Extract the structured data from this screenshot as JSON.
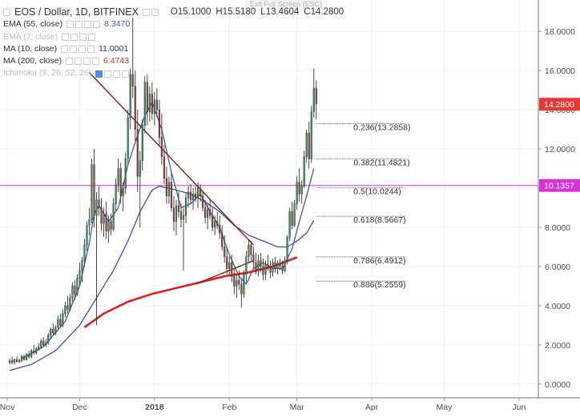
{
  "header": {
    "title": "EOS / Dollar, 1D, BITFINEX",
    "ohlc": {
      "open": "O15.1000",
      "high": "H15.5180",
      "low": "L13.4604",
      "close": "C14.2800"
    },
    "exit_fullscreen": "Exit Full Screen (ESC)"
  },
  "indicators": [
    {
      "label": "EMA (55, close)",
      "value": "8.3470",
      "color": "#3a5bb0",
      "faded": false
    },
    {
      "label": "EMA (7, close)",
      "value": "",
      "color": "#b9bcc2",
      "faded": true
    },
    {
      "label": "MA (10, close)",
      "value": "11.0001",
      "color": "#1f3c88",
      "faded": false
    },
    {
      "label": "MA (200, close)",
      "value": "6.4743",
      "color": "#d32f2f",
      "faded": false
    },
    {
      "label": "Ichimoku (9, 26, 52, 26)",
      "value": "",
      "color": "#b9bcc2",
      "faded": true
    }
  ],
  "chart_data": {
    "type": "candlestick",
    "symbol": "EOS / Dollar",
    "timeframe": "1D",
    "exchange": "BITFINEX",
    "x_ticks": [
      "Nov",
      "Dec",
      "2018",
      "Feb",
      "Mar",
      "Apr",
      "May",
      "Jun"
    ],
    "y_ticks": [
      "0.0000",
      "2.0000",
      "4.0000",
      "6.0000",
      "8.0000",
      "10.0000",
      "12.0000",
      "14.0000",
      "16.0000",
      "18.0000"
    ],
    "ylim": [
      -0.7,
      19.6
    ],
    "last_price": {
      "label": "14.2800",
      "value": 14.28,
      "color": "#e53935"
    },
    "horizontal_line": {
      "label": "10.1357",
      "value": 10.1357,
      "color": "#d633d6"
    },
    "fib_levels": [
      {
        "ratio": "0.236",
        "text": "0.236(13.2858)",
        "value": 13.2858,
        "color": "#333333"
      },
      {
        "ratio": "0.382",
        "text": "0.382(11.4821)",
        "value": 11.4821,
        "color": "#333333"
      },
      {
        "ratio": "0.5",
        "text": "0.5(10.0244)",
        "value": 10.0244,
        "color": "#3a6fd8"
      },
      {
        "ratio": "0.618",
        "text": "0.618(8.5667)",
        "value": 8.5667,
        "color": "#333333"
      },
      {
        "ratio": "0.786",
        "text": "0.786(6.4912)",
        "value": 6.4912,
        "color": "#333333"
      },
      {
        "ratio": "0.886",
        "text": "0.886(5.2559)",
        "value": 5.2559,
        "color": "#333333"
      }
    ],
    "candles": [
      [
        1,
        1.1,
        1.3,
        1.0,
        1.2
      ],
      [
        2,
        1.2,
        1.4,
        1.0,
        1.1
      ],
      [
        3,
        1.1,
        1.3,
        1.0,
        1.25
      ],
      [
        4,
        1.25,
        1.4,
        1.1,
        1.15
      ],
      [
        5,
        1.15,
        1.3,
        1.05,
        1.2
      ],
      [
        6,
        1.2,
        1.5,
        1.1,
        1.4
      ],
      [
        7,
        1.4,
        1.5,
        1.2,
        1.25
      ],
      [
        8,
        1.25,
        1.6,
        1.2,
        1.5
      ],
      [
        9,
        1.5,
        1.7,
        1.3,
        1.4
      ],
      [
        10,
        1.4,
        1.8,
        1.3,
        1.7
      ],
      [
        11,
        1.7,
        2.0,
        1.5,
        1.6
      ],
      [
        12,
        1.6,
        1.9,
        1.5,
        1.8
      ],
      [
        13,
        1.8,
        2.1,
        1.7,
        1.9
      ],
      [
        14,
        1.9,
        2.3,
        1.8,
        2.2
      ],
      [
        15,
        2.2,
        2.4,
        1.9,
        2.0
      ],
      [
        16,
        2.0,
        2.3,
        1.9,
        2.1
      ],
      [
        17,
        2.1,
        2.6,
        2.0,
        2.5
      ],
      [
        18,
        2.5,
        2.9,
        2.3,
        2.8
      ],
      [
        19,
        2.8,
        3.1,
        2.5,
        2.6
      ],
      [
        20,
        2.6,
        3.0,
        2.5,
        2.9
      ],
      [
        21,
        2.9,
        3.5,
        2.8,
        3.3
      ],
      [
        22,
        3.3,
        3.6,
        2.9,
        3.0
      ],
      [
        23,
        3.0,
        3.8,
        2.9,
        3.6
      ],
      [
        24,
        3.6,
        4.2,
        3.4,
        4.0
      ],
      [
        25,
        4.0,
        4.5,
        3.6,
        3.8
      ],
      [
        26,
        3.8,
        4.6,
        3.7,
        4.4
      ],
      [
        27,
        4.4,
        5.2,
        4.2,
        5.0
      ],
      [
        28,
        5.0,
        5.3,
        4.3,
        4.6
      ],
      [
        29,
        4.6,
        5.6,
        4.5,
        5.4
      ],
      [
        30,
        5.4,
        6.2,
        5.0,
        5.8
      ],
      [
        31,
        5.8,
        6.5,
        5.2,
        6.3
      ],
      [
        32,
        6.3,
        7.4,
        6.0,
        7.1
      ],
      [
        33,
        7.1,
        8.3,
        6.8,
        8.1
      ],
      [
        34,
        8.1,
        9.0,
        7.6,
        8.4
      ],
      [
        35,
        8.4,
        11.5,
        8.2,
        11.2
      ],
      [
        36,
        11.2,
        12.0,
        8.0,
        8.6
      ],
      [
        37,
        8.6,
        9.8,
        3.0,
        9.4
      ],
      [
        38,
        9.4,
        10.1,
        8.6,
        9.0
      ],
      [
        39,
        9.0,
        9.5,
        7.8,
        8.2
      ],
      [
        40,
        8.2,
        9.0,
        7.5,
        8.7
      ],
      [
        41,
        8.7,
        9.3,
        7.4,
        7.8
      ],
      [
        42,
        7.8,
        8.6,
        7.2,
        8.3
      ],
      [
        43,
        8.3,
        8.7,
        7.6,
        7.9
      ],
      [
        44,
        7.9,
        9.5,
        7.8,
        9.2
      ],
      [
        45,
        9.2,
        10.5,
        8.8,
        10.2
      ],
      [
        46,
        10.2,
        11.5,
        9.8,
        11.0
      ],
      [
        47,
        11.0,
        11.3,
        9.2,
        9.6
      ],
      [
        48,
        9.6,
        10.3,
        8.8,
        10.0
      ],
      [
        49,
        10.0,
        11.8,
        9.7,
        11.5
      ],
      [
        50,
        11.5,
        14.0,
        11.2,
        13.6
      ],
      [
        51,
        13.6,
        16.1,
        13.0,
        15.8
      ],
      [
        52,
        15.8,
        18.7,
        14.6,
        15.2
      ],
      [
        53,
        15.2,
        16.0,
        12.4,
        13.0
      ],
      [
        54,
        13.0,
        14.0,
        9.8,
        10.6
      ],
      [
        55,
        10.6,
        11.9,
        8.0,
        11.4
      ],
      [
        56,
        11.4,
        13.5,
        10.9,
        13.2
      ],
      [
        57,
        13.2,
        15.7,
        12.8,
        15.4
      ],
      [
        58,
        15.4,
        15.8,
        13.2,
        13.9
      ],
      [
        59,
        13.9,
        15.2,
        13.4,
        14.8
      ],
      [
        60,
        14.8,
        15.4,
        13.5,
        13.8
      ],
      [
        61,
        13.8,
        14.9,
        13.2,
        14.5
      ],
      [
        62,
        14.5,
        15.1,
        13.6,
        14.0
      ],
      [
        63,
        14.0,
        14.5,
        12.2,
        12.6
      ],
      [
        64,
        12.6,
        13.8,
        11.2,
        11.6
      ],
      [
        65,
        11.6,
        12.2,
        10.2,
        10.5
      ],
      [
        66,
        10.5,
        11.1,
        9.2,
        9.6
      ],
      [
        67,
        9.6,
        10.6,
        9.2,
        10.3
      ],
      [
        68,
        10.3,
        10.8,
        8.8,
        9.0
      ],
      [
        69,
        9.0,
        9.6,
        7.8,
        8.3
      ],
      [
        70,
        8.3,
        9.4,
        7.6,
        9.1
      ],
      [
        71,
        9.1,
        9.8,
        8.5,
        8.8
      ],
      [
        72,
        8.8,
        9.2,
        8.0,
        8.4
      ],
      [
        73,
        8.4,
        9.0,
        5.8,
        8.6
      ],
      [
        74,
        8.6,
        9.8,
        8.2,
        9.5
      ],
      [
        75,
        9.5,
        10.1,
        9.0,
        9.8
      ],
      [
        76,
        9.8,
        10.2,
        9.2,
        9.4
      ],
      [
        77,
        9.4,
        10.0,
        8.9,
        9.7
      ],
      [
        78,
        9.7,
        10.1,
        9.3,
        9.5
      ],
      [
        79,
        9.5,
        10.3,
        9.0,
        10.0
      ],
      [
        80,
        10.0,
        10.2,
        9.3,
        9.6
      ],
      [
        81,
        9.6,
        9.9,
        8.8,
        9.0
      ],
      [
        82,
        9.0,
        9.4,
        8.2,
        8.5
      ],
      [
        83,
        8.5,
        9.2,
        7.9,
        8.9
      ],
      [
        84,
        8.9,
        9.4,
        8.4,
        8.6
      ],
      [
        85,
        8.6,
        9.0,
        7.8,
        8.0
      ],
      [
        86,
        8.0,
        8.6,
        7.6,
        8.3
      ],
      [
        87,
        8.3,
        8.8,
        7.9,
        8.1
      ],
      [
        88,
        8.1,
        8.6,
        7.4,
        7.7
      ],
      [
        89,
        7.7,
        8.1,
        6.8,
        7.0
      ],
      [
        90,
        7.0,
        7.6,
        6.2,
        6.5
      ],
      [
        91,
        6.5,
        7.0,
        5.6,
        5.9
      ],
      [
        92,
        5.9,
        6.5,
        5.5,
        6.2
      ],
      [
        93,
        6.2,
        6.6,
        5.2,
        5.5
      ],
      [
        94,
        5.5,
        5.9,
        4.6,
        5.0
      ],
      [
        95,
        5.0,
        5.6,
        4.4,
        5.3
      ],
      [
        96,
        5.3,
        5.8,
        4.8,
        5.1
      ],
      [
        97,
        5.1,
        5.4,
        3.9,
        4.6
      ],
      [
        98,
        4.6,
        5.8,
        4.4,
        5.6
      ],
      [
        99,
        5.6,
        6.8,
        5.2,
        6.5
      ],
      [
        100,
        6.5,
        7.4,
        6.2,
        7.1
      ],
      [
        101,
        7.1,
        7.3,
        6.3,
        6.6
      ],
      [
        102,
        6.6,
        7.0,
        5.9,
        6.2
      ],
      [
        103,
        6.2,
        6.7,
        5.6,
        5.8
      ],
      [
        104,
        5.8,
        6.6,
        5.5,
        6.3
      ],
      [
        105,
        6.3,
        6.7,
        5.7,
        6.0
      ],
      [
        106,
        6.0,
        6.4,
        5.3,
        5.6
      ],
      [
        107,
        5.6,
        6.3,
        5.3,
        6.1
      ],
      [
        108,
        6.1,
        6.6,
        5.8,
        6.0
      ],
      [
        109,
        6.0,
        6.3,
        5.4,
        5.7
      ],
      [
        110,
        5.7,
        6.4,
        5.5,
        6.2
      ],
      [
        111,
        6.2,
        6.5,
        5.7,
        5.9
      ],
      [
        112,
        5.9,
        6.3,
        5.6,
        6.1
      ],
      [
        113,
        6.1,
        6.4,
        5.8,
        6.0
      ],
      [
        114,
        6.0,
        6.3,
        5.6,
        5.8
      ],
      [
        115,
        5.8,
        6.5,
        5.7,
        6.3
      ],
      [
        116,
        6.3,
        7.6,
        6.1,
        7.5
      ],
      [
        117,
        7.5,
        9.0,
        7.3,
        8.8
      ],
      [
        118,
        8.8,
        9.3,
        7.9,
        8.1
      ],
      [
        119,
        8.1,
        9.4,
        8.0,
        9.2
      ],
      [
        120,
        9.2,
        10.6,
        8.9,
        10.3
      ],
      [
        121,
        10.3,
        11.0,
        9.3,
        9.7
      ],
      [
        122,
        9.7,
        10.4,
        9.2,
        10.1
      ],
      [
        123,
        10.1,
        11.9,
        10.0,
        11.6
      ],
      [
        124,
        11.6,
        13.0,
        11.3,
        12.8
      ],
      [
        125,
        12.8,
        13.4,
        11.0,
        11.5
      ],
      [
        126,
        11.5,
        14.2,
        11.3,
        13.9
      ],
      [
        127,
        13.9,
        16.1,
        13.6,
        15.1
      ],
      [
        128,
        15.1,
        15.5,
        13.5,
        14.3
      ]
    ],
    "ma10": [
      [
        6,
        1.3
      ],
      [
        15,
        1.9
      ],
      [
        24,
        3.2
      ],
      [
        30,
        5.0
      ],
      [
        34,
        7.2
      ],
      [
        36,
        8.7
      ],
      [
        38,
        9.1
      ],
      [
        42,
        8.3
      ],
      [
        46,
        9.0
      ],
      [
        50,
        11.2
      ],
      [
        54,
        12.7
      ],
      [
        57,
        13.7
      ],
      [
        60,
        14.4
      ],
      [
        64,
        13.0
      ],
      [
        68,
        10.8
      ],
      [
        72,
        9.0
      ],
      [
        76,
        9.2
      ],
      [
        80,
        9.7
      ],
      [
        84,
        8.8
      ],
      [
        88,
        8.0
      ],
      [
        92,
        6.6
      ],
      [
        96,
        5.5
      ],
      [
        99,
        5.1
      ],
      [
        102,
        5.9
      ],
      [
        106,
        6.2
      ],
      [
        110,
        5.9
      ],
      [
        114,
        5.9
      ],
      [
        118,
        6.9
      ],
      [
        121,
        8.3
      ],
      [
        124,
        9.6
      ],
      [
        127,
        11.0
      ]
    ],
    "ema55": [
      [
        1,
        0.7
      ],
      [
        10,
        1.0
      ],
      [
        20,
        1.7
      ],
      [
        30,
        3.0
      ],
      [
        37,
        4.4
      ],
      [
        44,
        5.8
      ],
      [
        50,
        7.3
      ],
      [
        55,
        8.8
      ],
      [
        60,
        9.9
      ],
      [
        63,
        10.1
      ],
      [
        70,
        9.9
      ],
      [
        76,
        9.7
      ],
      [
        82,
        9.3
      ],
      [
        88,
        8.8
      ],
      [
        94,
        8.1
      ],
      [
        100,
        7.6
      ],
      [
        106,
        7.3
      ],
      [
        112,
        7.0
      ],
      [
        116,
        7.0
      ],
      [
        120,
        7.3
      ],
      [
        124,
        7.7
      ],
      [
        127,
        8.35
      ]
    ],
    "ma200": [
      [
        32,
        2.9
      ],
      [
        40,
        3.6
      ],
      [
        50,
        4.2
      ],
      [
        60,
        4.6
      ],
      [
        70,
        4.9
      ],
      [
        80,
        5.2
      ],
      [
        90,
        5.5
      ],
      [
        100,
        5.7
      ],
      [
        110,
        6.0
      ],
      [
        120,
        6.47
      ]
    ],
    "triangle": {
      "color": "#8b1a1a",
      "upper": [
        [
          34,
          15.9
        ],
        [
          102,
          7.1
        ]
      ],
      "lower": [
        [
          78,
          5.1
        ],
        [
          102,
          6.3
        ]
      ]
    }
  }
}
